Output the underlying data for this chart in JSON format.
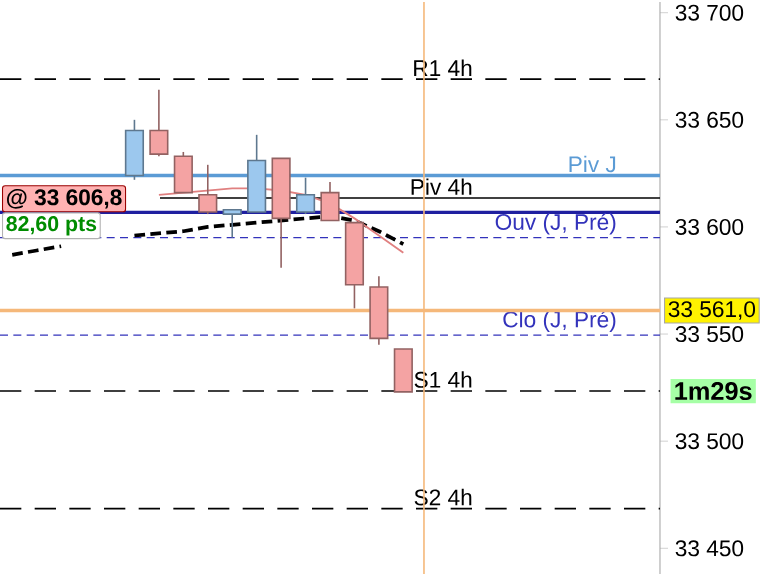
{
  "chart_data": {
    "type": "candlestick",
    "categories": [
      null,
      null,
      null,
      null,
      null,
      null,
      null,
      null,
      null,
      null,
      null,
      null,
      null,
      null,
      null,
      null,
      null,
      null,
      null,
      null,
      null,
      null,
      null,
      null,
      null,
      null,
      null
    ],
    "ohlc": [
      null,
      null,
      null,
      null,
      null,
      [
        33624,
        33650,
        33622,
        33645
      ],
      [
        33645,
        33664,
        33633,
        33634
      ],
      [
        33633,
        33635,
        33616,
        33616
      ],
      [
        33615,
        33629,
        33606,
        33607
      ],
      [
        33606,
        33608,
        33595,
        33608
      ],
      [
        33607,
        33643,
        33607,
        33631
      ],
      [
        33632,
        33632,
        33581,
        33604
      ],
      [
        33607,
        33623,
        33606,
        33615
      ],
      [
        33616,
        33621,
        33603,
        33603
      ],
      [
        33602,
        33602,
        33562,
        33573
      ],
      [
        33572,
        33577,
        33545,
        33548
      ],
      [
        33543,
        33543,
        33523,
        33523
      ],
      null,
      null,
      null,
      null,
      null,
      null,
      null,
      null,
      null,
      null
    ],
    "colors": [
      null,
      null,
      null,
      null,
      null,
      "#9cc8ee",
      "#f4a3a3",
      "#f4a3a3",
      "#f4a3a3",
      "#9cc8ee",
      "#9cc8ee",
      "#f4a3a3",
      "#9cc8ee",
      "#f4a3a3",
      "#f4a3a3",
      "#f4a3a3",
      "#f4a3a3",
      null,
      null,
      null,
      null,
      null,
      null,
      null,
      null,
      null,
      null
    ],
    "series": [
      {
        "type": "line",
        "color": "#000000",
        "line_style": "dashed",
        "values": [
          33587,
          33589,
          33591,
          null,
          null,
          33596,
          33597,
          33598,
          33600,
          33601,
          33602,
          33603,
          33604,
          33605,
          33603,
          33598,
          33592,
          null,
          null,
          null,
          null,
          null,
          null,
          null,
          null,
          null,
          null
        ]
      },
      {
        "type": "line",
        "color": "#e08080",
        "line_style": "solid",
        "values": [
          null,
          null,
          null,
          null,
          null,
          null,
          33615,
          33616,
          33617,
          33618,
          33618,
          33617,
          33615,
          33611,
          33604,
          33596,
          33588,
          null,
          null,
          null,
          null,
          null,
          null,
          null,
          null,
          null,
          null
        ]
      }
    ],
    "ref_lines": [
      {
        "axis": "y",
        "value": 33669,
        "label": "R1 4h",
        "color": "#000000",
        "line_style": "dashed"
      },
      {
        "axis": "y",
        "value": 33624,
        "label": "Piv J",
        "color": "#5b9bd5",
        "line_style": "solid"
      },
      {
        "axis": "y",
        "value": 33613.5,
        "label": "Piv 4h",
        "color": "#000000",
        "line_style": "solid"
      },
      {
        "axis": "y",
        "value": 33606.8,
        "color": "#1f1fa0",
        "line_style": "solid"
      },
      {
        "axis": "y",
        "value": 33595,
        "label": "Ouv (J, Pré)",
        "color": "#3333bb",
        "line_style": "dashed"
      },
      {
        "axis": "y",
        "value": 33549.5,
        "label": "Clo (J, Pré)",
        "color": "#3333bb",
        "line_style": "dashed"
      },
      {
        "axis": "y",
        "value": 33523.4,
        "label": "S1 4h",
        "color": "#000000",
        "line_style": "dashed"
      },
      {
        "axis": "y",
        "value": 33468.5,
        "label": "S2 4h",
        "color": "#000000",
        "line_style": "dashed"
      },
      {
        "axis": "y",
        "value": 33561,
        "color": "#f5b87a",
        "line_style": "solid"
      }
    ],
    "annotations": [
      "@ 33 606,8",
      "82,60 pts",
      "33 561,0",
      "1m29s"
    ],
    "ylim": [
      33438,
      33705
    ],
    "yticks": [
      {
        "value": 33450,
        "label": "33 450"
      },
      {
        "value": 33500,
        "label": "33 500"
      },
      {
        "value": 33550,
        "label": "33 550"
      },
      {
        "value": 33600,
        "label": "33 600"
      },
      {
        "value": 33650,
        "label": "33 650"
      },
      {
        "value": 33700,
        "label": "33 700"
      }
    ],
    "tick_labels": "y"
  }
}
